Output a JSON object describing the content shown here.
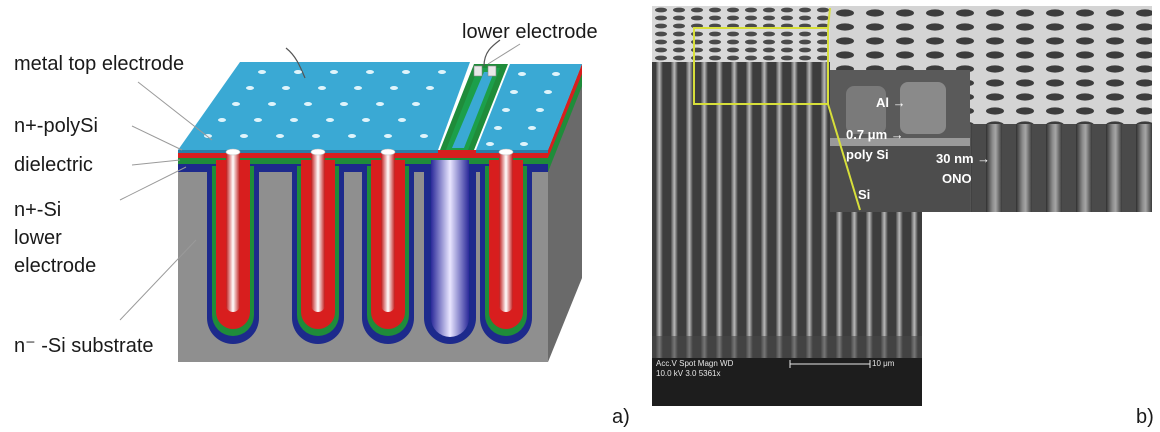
{
  "panel_a": {
    "panel_label": "a)",
    "labels": {
      "metal_top_electrode": "metal top electrode",
      "lower_electrode": "lower electrode",
      "n_polysi": "n+-polySi",
      "dielectric": "dielectric",
      "n_si_line1": "n+-Si",
      "n_si_line2": "lower",
      "n_si_line3": "electrode",
      "substrate": "n⁻ -Si substrate"
    },
    "colors": {
      "electrode_top": "#3aa9d4",
      "electrode_front": "#2a7fa6",
      "polysi": "#d81e1e",
      "dielectric": "#1f8c3a",
      "lower_electrode_layer": "#1d2a8c",
      "substrate_front": "#8f8f8f",
      "substrate_side": "#6a6a6a"
    }
  },
  "panel_b": {
    "panel_label": "b)",
    "inset_labels": {
      "al": "Al →",
      "poly_si_thickness": "0.7 μm →",
      "poly_si": "poly Si",
      "ono_thickness": "30 nm →",
      "ono": "ONO",
      "si": "Si"
    },
    "databar": {
      "line1": "Acc.V   Spot Magn    WD",
      "line2": "10.0 kV 3.0    5361x",
      "scale": "10 μm"
    },
    "colors": {
      "highlight_box": "#d7df3a"
    }
  }
}
